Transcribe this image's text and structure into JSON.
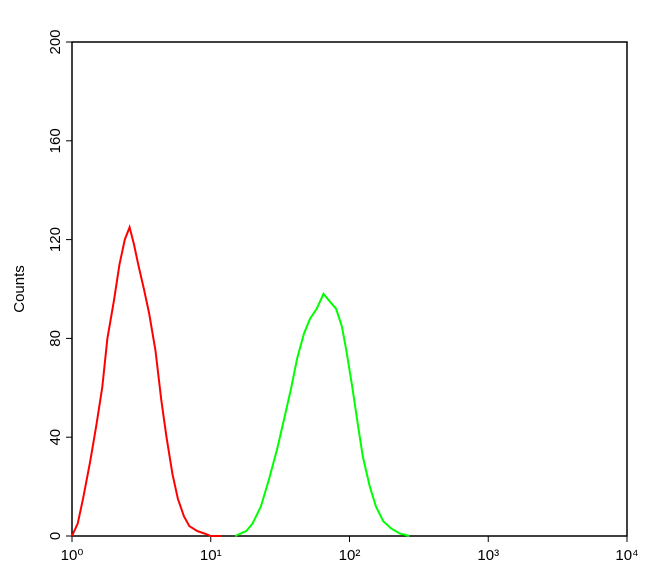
{
  "chart_data": {
    "type": "line",
    "y_label": "Counts",
    "xscale": "log",
    "xlim": [
      1,
      10000
    ],
    "ylim": [
      0,
      200
    ],
    "xticks": [
      {
        "value": 1,
        "label": "10⁰"
      },
      {
        "value": 10,
        "label": "10¹"
      },
      {
        "value": 100,
        "label": "10²"
      },
      {
        "value": 1000,
        "label": "10³"
      },
      {
        "value": 10000,
        "label": "10⁴"
      }
    ],
    "yticks": [
      0,
      40,
      80,
      120,
      160,
      200
    ],
    "series": [
      {
        "color": "#ff0000",
        "x": [
          1.0,
          1.1,
          1.2,
          1.35,
          1.5,
          1.65,
          1.8,
          2.0,
          2.2,
          2.4,
          2.6,
          2.8,
          3.0,
          3.3,
          3.6,
          4.0,
          4.4,
          4.8,
          5.3,
          5.8,
          6.4,
          7.0,
          8.0,
          9.0,
          10,
          12
        ],
        "values": [
          0,
          5,
          15,
          30,
          45,
          60,
          80,
          95,
          110,
          120,
          125,
          118,
          110,
          100,
          90,
          75,
          55,
          40,
          25,
          15,
          8,
          4,
          2,
          1,
          0,
          0
        ]
      },
      {
        "color": "#00ff00",
        "x": [
          15,
          18,
          20,
          23,
          26,
          30,
          34,
          38,
          42,
          47,
          52,
          58,
          65,
          72,
          80,
          88,
          95,
          105,
          115,
          125,
          140,
          155,
          175,
          200,
          230,
          270
        ],
        "values": [
          0,
          2,
          5,
          12,
          22,
          35,
          48,
          60,
          72,
          82,
          88,
          92,
          98,
          95,
          92,
          85,
          75,
          60,
          45,
          32,
          20,
          12,
          6,
          3,
          1,
          0
        ]
      }
    ]
  }
}
